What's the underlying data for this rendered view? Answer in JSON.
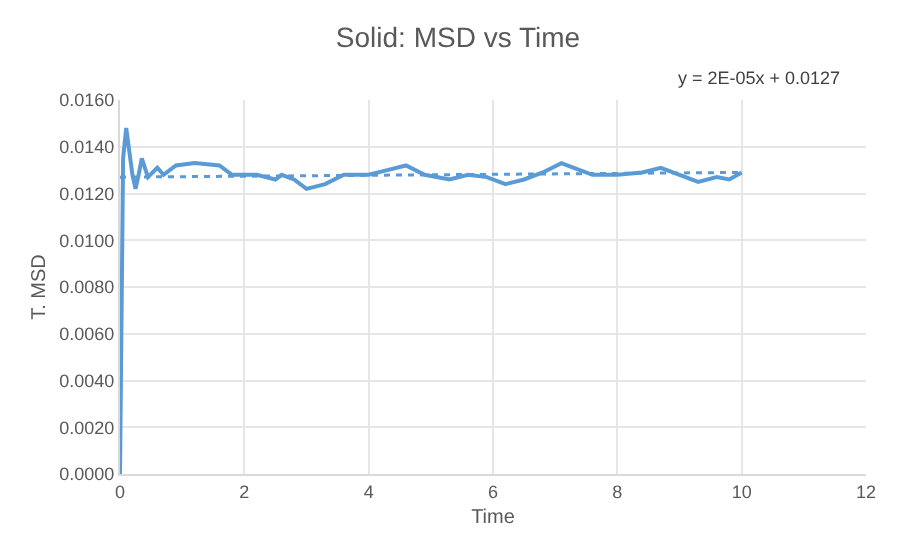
{
  "chart_data": {
    "type": "line",
    "title": "Solid: MSD vs Time",
    "xlabel": "Time",
    "ylabel": "T. MSD",
    "annotations": [
      "y = 2E-05x + 0.0127"
    ],
    "xlim": [
      0,
      12
    ],
    "xticks": [
      0,
      2,
      4,
      6,
      8,
      10,
      12
    ],
    "ylim": [
      0,
      0.016
    ],
    "yticks": [
      {
        "value": 0,
        "label": "0.0000"
      },
      {
        "value": 0.002,
        "label": "0.0020"
      },
      {
        "value": 0.004,
        "label": "0.0040"
      },
      {
        "value": 0.006,
        "label": "0.0060"
      },
      {
        "value": 0.008,
        "label": "0.0080"
      },
      {
        "value": 0.01,
        "label": "0.0100"
      },
      {
        "value": 0.012,
        "label": "0.0120"
      },
      {
        "value": 0.014,
        "label": "0.0140"
      },
      {
        "value": 0.016,
        "label": "0.0160"
      }
    ],
    "grid": true,
    "marker": "none",
    "series": [
      {
        "color": "#5b9bd5",
        "line_style": "solid",
        "x": [
          0,
          0.05,
          0.1,
          0.15,
          0.2,
          0.25,
          0.3,
          0.35,
          0.45,
          0.6,
          0.7,
          0.9,
          1.2,
          1.6,
          1.8,
          2.2,
          2.5,
          2.6,
          2.8,
          3.0,
          3.3,
          3.6,
          4.0,
          4.3,
          4.6,
          4.9,
          5.3,
          5.6,
          5.9,
          6.2,
          6.5,
          6.8,
          7.1,
          7.3,
          7.6,
          8.0,
          8.4,
          8.7,
          9.0,
          9.3,
          9.6,
          9.8,
          10
        ],
        "values": [
          0,
          0.0135,
          0.0148,
          0.0138,
          0.0128,
          0.0122,
          0.0128,
          0.0135,
          0.0127,
          0.0131,
          0.0128,
          0.0132,
          0.0133,
          0.0132,
          0.0128,
          0.0128,
          0.0126,
          0.0128,
          0.0126,
          0.0122,
          0.0124,
          0.0128,
          0.0128,
          0.013,
          0.0132,
          0.0128,
          0.0126,
          0.0128,
          0.0127,
          0.0124,
          0.0126,
          0.0129,
          0.0133,
          0.0131,
          0.0128,
          0.0128,
          0.0129,
          0.0131,
          0.0128,
          0.0125,
          0.0127,
          0.0126,
          0.0129
        ]
      },
      {
        "color": "#5b9bd5",
        "line_style": "dotted",
        "x": [
          0,
          10
        ],
        "values": [
          0.0127,
          0.0129
        ]
      }
    ]
  }
}
